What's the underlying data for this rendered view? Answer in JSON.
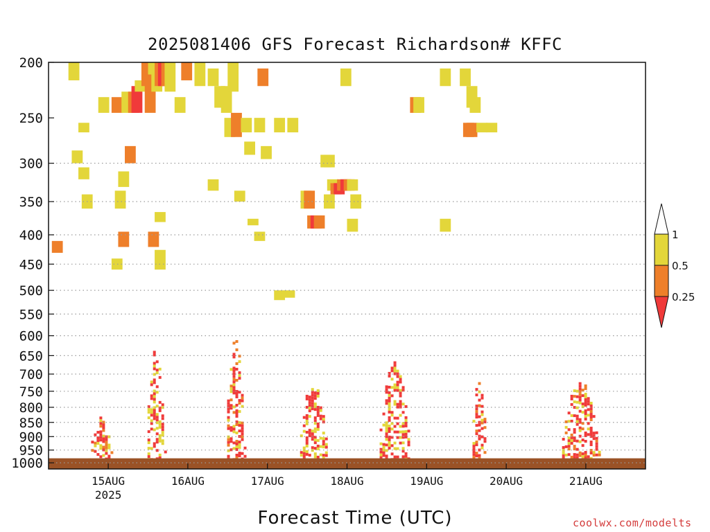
{
  "title": "2025081406 GFS Forecast Richardson# KFFC",
  "xlabel": "Forecast Time (UTC)",
  "credit": "coolwx.com/modelts",
  "colors": {
    "yellow": "#e3d63a",
    "orange": "#ee7f2a",
    "red": "#f03a3a",
    "ground": "#9a5226",
    "grid": "#9a9a9a"
  },
  "chart_data": {
    "type": "heatmap",
    "title": "2025081406 GFS Forecast Richardson# KFFC",
    "xlabel": "Forecast Time (UTC)",
    "ylabel": "",
    "y_scale": "log-pressure (hPa), inverted",
    "ylim": [
      1025,
      200
    ],
    "xlim": [
      "2025-08-14T06",
      "2025-08-21T18"
    ],
    "x_ticks": [
      {
        "time": "2025-08-15T00",
        "label": "15AUG",
        "sublabel": "2025"
      },
      {
        "time": "2025-08-16T00",
        "label": "16AUG",
        "sublabel": ""
      },
      {
        "time": "2025-08-17T00",
        "label": "17AUG",
        "sublabel": ""
      },
      {
        "time": "2025-08-18T00",
        "label": "18AUG",
        "sublabel": ""
      },
      {
        "time": "2025-08-19T00",
        "label": "19AUG",
        "sublabel": ""
      },
      {
        "time": "2025-08-20T00",
        "label": "20AUG",
        "sublabel": ""
      },
      {
        "time": "2025-08-21T00",
        "label": "21AUG",
        "sublabel": ""
      }
    ],
    "y_ticks": [
      1000,
      950,
      900,
      850,
      800,
      750,
      700,
      650,
      600,
      550,
      500,
      450,
      400,
      350,
      300,
      250,
      200
    ],
    "y_grid": [
      1000,
      950,
      900,
      850,
      800,
      750,
      700,
      650,
      600,
      550,
      500,
      450,
      400,
      350,
      300
    ],
    "grid": "dotted horizontal",
    "legend": {
      "position": "right",
      "bins": [
        {
          "range": ">1",
          "color": "#ffffff"
        },
        {
          "range": "0.5-1",
          "color": "#e3d63a"
        },
        {
          "range": "0.25-0.5",
          "color": "#ee7f2a"
        },
        {
          "range": "<0.25",
          "color": "#f03a3a"
        }
      ],
      "labels": [
        "1",
        "0.5",
        "0.25"
      ]
    },
    "ground_level_hPa": 982,
    "cells": [
      {
        "t": "2025-08-14T12",
        "p_top": 200,
        "p_bot": 215,
        "c": "yellow"
      },
      {
        "t": "2025-08-14T07",
        "p_top": 410,
        "p_bot": 430,
        "c": "orange"
      },
      {
        "t": "2025-08-14T13",
        "p_top": 285,
        "p_bot": 300,
        "c": "yellow"
      },
      {
        "t": "2025-08-14T15",
        "p_top": 255,
        "p_bot": 265,
        "c": "yellow"
      },
      {
        "t": "2025-08-14T15",
        "p_top": 305,
        "p_bot": 320,
        "c": "yellow"
      },
      {
        "t": "2025-08-14T16",
        "p_top": 340,
        "p_bot": 360,
        "c": "yellow"
      },
      {
        "t": "2025-08-14T21",
        "p_top": 230,
        "p_bot": 245,
        "c": "yellow"
      },
      {
        "t": "2025-08-15T01",
        "p_top": 230,
        "p_bot": 245,
        "c": "orange"
      },
      {
        "t": "2025-08-15T02",
        "p_top": 335,
        "p_bot": 360,
        "c": "yellow"
      },
      {
        "t": "2025-08-15T03",
        "p_top": 310,
        "p_bot": 330,
        "c": "yellow"
      },
      {
        "t": "2025-08-15T03",
        "p_top": 395,
        "p_bot": 420,
        "c": "orange"
      },
      {
        "t": "2025-08-15T01",
        "p_top": 440,
        "p_bot": 460,
        "c": "yellow"
      },
      {
        "t": "2025-08-15T04",
        "p_top": 225,
        "p_bot": 245,
        "c": "yellow"
      },
      {
        "t": "2025-08-15T05",
        "p_top": 280,
        "p_bot": 300,
        "c": "orange"
      },
      {
        "t": "2025-08-15T06",
        "p_top": 225,
        "p_bot": 245,
        "c": "orange"
      },
      {
        "t": "2025-08-15T07",
        "p_top": 220,
        "p_bot": 245,
        "c": "red"
      },
      {
        "t": "2025-08-15T08",
        "p_top": 215,
        "p_bot": 225,
        "c": "yellow"
      },
      {
        "t": "2025-08-15T10",
        "p_top": 200,
        "p_bot": 220,
        "c": "orange"
      },
      {
        "t": "2025-08-15T11",
        "p_top": 215,
        "p_bot": 245,
        "c": "orange"
      },
      {
        "t": "2025-08-15T12",
        "p_top": 200,
        "p_bot": 210,
        "c": "yellow"
      },
      {
        "t": "2025-08-15T13",
        "p_top": 205,
        "p_bot": 225,
        "c": "yellow"
      },
      {
        "t": "2025-08-15T14",
        "p_top": 200,
        "p_bot": 220,
        "c": "orange"
      },
      {
        "t": "2025-08-15T15",
        "p_top": 200,
        "p_bot": 220,
        "c": "red"
      },
      {
        "t": "2025-08-15T16",
        "p_top": 200,
        "p_bot": 220,
        "c": "orange"
      },
      {
        "t": "2025-08-15T17",
        "p_top": 200,
        "p_bot": 225,
        "c": "yellow"
      },
      {
        "t": "2025-08-15T12",
        "p_top": 395,
        "p_bot": 420,
        "c": "orange"
      },
      {
        "t": "2025-08-15T14",
        "p_top": 365,
        "p_bot": 380,
        "c": "yellow"
      },
      {
        "t": "2025-08-15T14",
        "p_top": 425,
        "p_bot": 460,
        "c": "yellow"
      },
      {
        "t": "2025-08-15T20",
        "p_top": 230,
        "p_bot": 245,
        "c": "yellow"
      },
      {
        "t": "2025-08-15T22",
        "p_top": 200,
        "p_bot": 215,
        "c": "orange"
      },
      {
        "t": "2025-08-16T02",
        "p_top": 200,
        "p_bot": 220,
        "c": "yellow"
      },
      {
        "t": "2025-08-16T06",
        "p_top": 205,
        "p_bot": 220,
        "c": "yellow"
      },
      {
        "t": "2025-08-16T08",
        "p_top": 220,
        "p_bot": 240,
        "c": "yellow"
      },
      {
        "t": "2025-08-16T10",
        "p_top": 220,
        "p_bot": 245,
        "c": "yellow"
      },
      {
        "t": "2025-08-16T12",
        "p_top": 200,
        "p_bot": 225,
        "c": "yellow"
      },
      {
        "t": "2025-08-16T06",
        "p_top": 320,
        "p_bot": 335,
        "c": "yellow"
      },
      {
        "t": "2025-08-16T11",
        "p_top": 250,
        "p_bot": 270,
        "c": "yellow"
      },
      {
        "t": "2025-08-16T13",
        "p_top": 245,
        "p_bot": 270,
        "c": "orange"
      },
      {
        "t": "2025-08-16T16",
        "p_top": 250,
        "p_bot": 265,
        "c": "yellow"
      },
      {
        "t": "2025-08-16T14",
        "p_top": 335,
        "p_bot": 350,
        "c": "yellow"
      },
      {
        "t": "2025-08-16T17",
        "p_top": 275,
        "p_bot": 290,
        "c": "yellow"
      },
      {
        "t": "2025-08-16T20",
        "p_top": 250,
        "p_bot": 265,
        "c": "yellow"
      },
      {
        "t": "2025-08-16T18",
        "p_top": 375,
        "p_bot": 385,
        "c": "yellow"
      },
      {
        "t": "2025-08-16T21",
        "p_top": 205,
        "p_bot": 220,
        "c": "orange"
      },
      {
        "t": "2025-08-16T20",
        "p_top": 395,
        "p_bot": 410,
        "c": "yellow"
      },
      {
        "t": "2025-08-16T22",
        "p_top": 280,
        "p_bot": 295,
        "c": "yellow"
      },
      {
        "t": "2025-08-17T02",
        "p_top": 250,
        "p_bot": 265,
        "c": "yellow"
      },
      {
        "t": "2025-08-17T02",
        "p_top": 500,
        "p_bot": 520,
        "c": "yellow"
      },
      {
        "t": "2025-08-17T05",
        "p_top": 500,
        "p_bot": 515,
        "c": "yellow"
      },
      {
        "t": "2025-08-17T06",
        "p_top": 250,
        "p_bot": 265,
        "c": "yellow"
      },
      {
        "t": "2025-08-17T10",
        "p_top": 335,
        "p_bot": 360,
        "c": "yellow"
      },
      {
        "t": "2025-08-17T11",
        "p_top": 335,
        "p_bot": 360,
        "c": "orange"
      },
      {
        "t": "2025-08-17T12",
        "p_top": 370,
        "p_bot": 390,
        "c": "orange"
      },
      {
        "t": "2025-08-17T13",
        "p_top": 370,
        "p_bot": 390,
        "c": "red"
      },
      {
        "t": "2025-08-17T14",
        "p_top": 370,
        "p_bot": 390,
        "c": "orange"
      },
      {
        "t": "2025-08-17T16",
        "p_top": 290,
        "p_bot": 305,
        "c": "yellow"
      },
      {
        "t": "2025-08-17T17",
        "p_top": 290,
        "p_bot": 305,
        "c": "yellow"
      },
      {
        "t": "2025-08-17T18",
        "p_top": 320,
        "p_bot": 335,
        "c": "yellow"
      },
      {
        "t": "2025-08-17T19",
        "p_top": 325,
        "p_bot": 340,
        "c": "orange"
      },
      {
        "t": "2025-08-17T20",
        "p_top": 325,
        "p_bot": 340,
        "c": "red"
      },
      {
        "t": "2025-08-17T21",
        "p_top": 320,
        "p_bot": 335,
        "c": "orange"
      },
      {
        "t": "2025-08-17T22",
        "p_top": 320,
        "p_bot": 335,
        "c": "red"
      },
      {
        "t": "2025-08-17T23",
        "p_top": 320,
        "p_bot": 335,
        "c": "orange"
      },
      {
        "t": "2025-08-17T17",
        "p_top": 340,
        "p_bot": 360,
        "c": "yellow"
      },
      {
        "t": "2025-08-18T00",
        "p_top": 320,
        "p_bot": 335,
        "c": "yellow"
      },
      {
        "t": "2025-08-18T01",
        "p_top": 340,
        "p_bot": 360,
        "c": "yellow"
      },
      {
        "t": "2025-08-18T00",
        "p_top": 375,
        "p_bot": 395,
        "c": "yellow"
      },
      {
        "t": "2025-08-17T22",
        "p_top": 205,
        "p_bot": 220,
        "c": "yellow"
      },
      {
        "t": "2025-08-18T19",
        "p_top": 230,
        "p_bot": 245,
        "c": "orange"
      },
      {
        "t": "2025-08-18T20",
        "p_top": 230,
        "p_bot": 245,
        "c": "yellow"
      },
      {
        "t": "2025-08-19T04",
        "p_top": 205,
        "p_bot": 220,
        "c": "yellow"
      },
      {
        "t": "2025-08-19T10",
        "p_top": 205,
        "p_bot": 220,
        "c": "yellow"
      },
      {
        "t": "2025-08-19T12",
        "p_top": 220,
        "p_bot": 240,
        "c": "yellow"
      },
      {
        "t": "2025-08-19T13",
        "p_top": 230,
        "p_bot": 245,
        "c": "yellow"
      },
      {
        "t": "2025-08-19T11",
        "p_top": 255,
        "p_bot": 270,
        "c": "orange"
      },
      {
        "t": "2025-08-19T12",
        "p_top": 255,
        "p_bot": 270,
        "c": "orange"
      },
      {
        "t": "2025-08-19T15",
        "p_top": 255,
        "p_bot": 265,
        "c": "yellow"
      },
      {
        "t": "2025-08-19T18",
        "p_top": 255,
        "p_bot": 265,
        "c": "yellow"
      },
      {
        "t": "2025-08-19T04",
        "p_top": 375,
        "p_bot": 395,
        "c": "yellow"
      }
    ],
    "low_level_bands": [
      {
        "t_start": "2025-08-14T18",
        "t_end": "2025-08-15T01",
        "p_min": 830,
        "p_max": 982,
        "dominant": "red",
        "accent": "orange"
      },
      {
        "t_start": "2025-08-15T11",
        "t_end": "2025-08-15T17",
        "p_min": 630,
        "p_max": 982,
        "dominant": "red",
        "accent": "yellow"
      },
      {
        "t_start": "2025-08-16T11",
        "t_end": "2025-08-16T17",
        "p_min": 600,
        "p_max": 982,
        "dominant": "red",
        "accent": "orange"
      },
      {
        "t_start": "2025-08-17T09",
        "t_end": "2025-08-17T18",
        "p_min": 715,
        "p_max": 982,
        "dominant": "red",
        "accent": "yellow"
      },
      {
        "t_start": "2025-08-18T09",
        "t_end": "2025-08-18T19",
        "p_min": 665,
        "p_max": 982,
        "dominant": "red",
        "accent": "yellow"
      },
      {
        "t_start": "2025-08-19T13",
        "t_end": "2025-08-19T18",
        "p_min": 715,
        "p_max": 982,
        "dominant": "red",
        "accent": "orange"
      },
      {
        "t_start": "2025-08-20T16",
        "t_end": "2025-08-21T04",
        "p_min": 715,
        "p_max": 982,
        "dominant": "red",
        "accent": "orange"
      }
    ]
  }
}
